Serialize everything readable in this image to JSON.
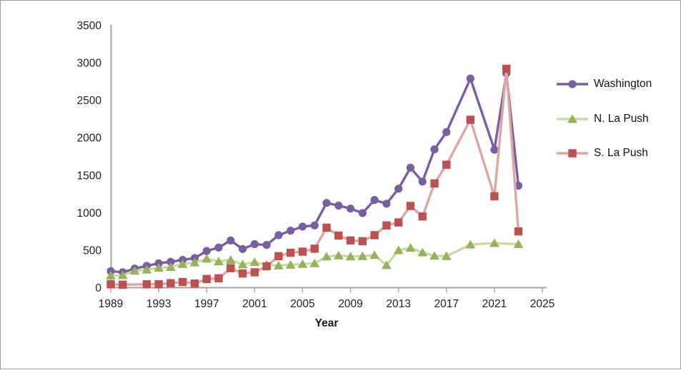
{
  "window": {
    "background": "#ffffff",
    "border_color": "#9e9e9e",
    "axis_color": "#a3a3a3",
    "text_color": "#1f1f1f"
  },
  "chart_data": {
    "type": "line",
    "title": "",
    "xlabel": "Year",
    "ylabel": "",
    "xlim": [
      1989,
      2025
    ],
    "ylim": [
      0,
      3500
    ],
    "x_ticks": [
      1989,
      1993,
      1997,
      2001,
      2005,
      2009,
      2013,
      2017,
      2021,
      2025
    ],
    "y_ticks": [
      0,
      500,
      1000,
      1500,
      2000,
      2500,
      3000,
      3500
    ],
    "grid": false,
    "legend_position": "right",
    "series": [
      {
        "name": "Washington",
        "marker": "circle",
        "line_color": "#7a5da4",
        "marker_color": "#7a5da4",
        "points": [
          [
            1989,
            220
          ],
          [
            1990,
            205
          ],
          [
            1991,
            255
          ],
          [
            1992,
            290
          ],
          [
            1993,
            325
          ],
          [
            1994,
            345
          ],
          [
            1995,
            370
          ],
          [
            1996,
            395
          ],
          [
            1997,
            490
          ],
          [
            1998,
            535
          ],
          [
            1999,
            630
          ],
          [
            2000,
            515
          ],
          [
            2001,
            580
          ],
          [
            2002,
            570
          ],
          [
            2003,
            700
          ],
          [
            2004,
            760
          ],
          [
            2005,
            815
          ],
          [
            2006,
            830
          ],
          [
            2007,
            1130
          ],
          [
            2008,
            1095
          ],
          [
            2009,
            1055
          ],
          [
            2010,
            995
          ],
          [
            2011,
            1170
          ],
          [
            2012,
            1120
          ],
          [
            2013,
            1320
          ],
          [
            2014,
            1600
          ],
          [
            2015,
            1415
          ],
          [
            2016,
            1845
          ],
          [
            2017,
            2075
          ],
          [
            2019,
            2790
          ],
          [
            2021,
            1840
          ],
          [
            2022,
            2860
          ],
          [
            2023,
            1360
          ]
        ]
      },
      {
        "name": "N. La Push",
        "marker": "triangle",
        "line_color": "#c9dca3",
        "marker_color": "#94b455",
        "points": [
          [
            1989,
            160
          ],
          [
            1990,
            165
          ],
          [
            1991,
            225
          ],
          [
            1992,
            240
          ],
          [
            1993,
            265
          ],
          [
            1994,
            275
          ],
          [
            1995,
            315
          ],
          [
            1996,
            335
          ],
          [
            1997,
            385
          ],
          [
            1998,
            350
          ],
          [
            1999,
            370
          ],
          [
            2000,
            310
          ],
          [
            2001,
            340
          ],
          [
            2002,
            305
          ],
          [
            2003,
            295
          ],
          [
            2004,
            305
          ],
          [
            2005,
            315
          ],
          [
            2006,
            325
          ],
          [
            2007,
            415
          ],
          [
            2008,
            430
          ],
          [
            2009,
            415
          ],
          [
            2010,
            420
          ],
          [
            2011,
            435
          ],
          [
            2012,
            300
          ],
          [
            2013,
            500
          ],
          [
            2014,
            530
          ],
          [
            2015,
            470
          ],
          [
            2016,
            425
          ],
          [
            2017,
            420
          ],
          [
            2019,
            575
          ],
          [
            2021,
            595
          ],
          [
            2023,
            580
          ]
        ]
      },
      {
        "name": "S. La Push",
        "marker": "square",
        "line_color": "#dfa5a3",
        "marker_color": "#c0504d",
        "points": [
          [
            1989,
            45
          ],
          [
            1990,
            40
          ],
          [
            1992,
            45
          ],
          [
            1993,
            45
          ],
          [
            1994,
            60
          ],
          [
            1995,
            75
          ],
          [
            1996,
            55
          ],
          [
            1997,
            115
          ],
          [
            1998,
            125
          ],
          [
            1999,
            260
          ],
          [
            2000,
            190
          ],
          [
            2001,
            205
          ],
          [
            2002,
            285
          ],
          [
            2003,
            420
          ],
          [
            2004,
            465
          ],
          [
            2005,
            480
          ],
          [
            2006,
            520
          ],
          [
            2007,
            800
          ],
          [
            2008,
            695
          ],
          [
            2009,
            630
          ],
          [
            2010,
            620
          ],
          [
            2011,
            700
          ],
          [
            2012,
            830
          ],
          [
            2013,
            870
          ],
          [
            2014,
            1090
          ],
          [
            2015,
            950
          ],
          [
            2016,
            1390
          ],
          [
            2017,
            1640
          ],
          [
            2019,
            2240
          ],
          [
            2021,
            1220
          ],
          [
            2022,
            2920
          ],
          [
            2023,
            750
          ]
        ]
      }
    ]
  }
}
